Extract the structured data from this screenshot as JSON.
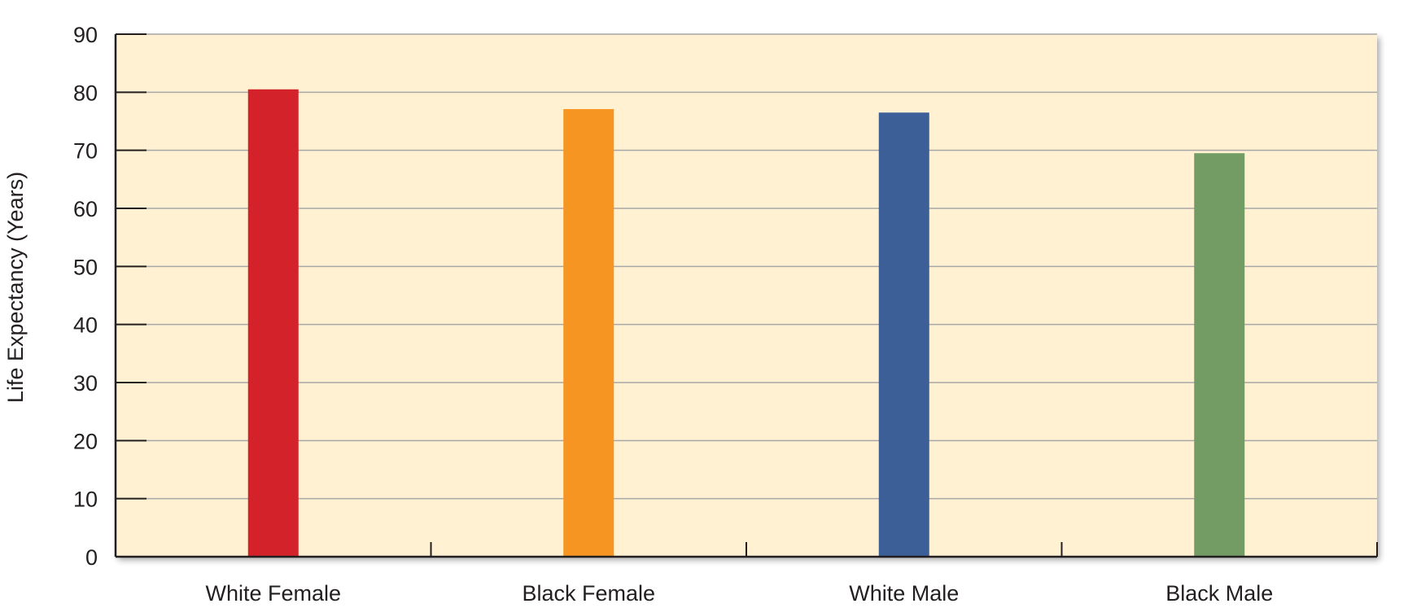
{
  "chart_data": {
    "type": "bar",
    "title": "",
    "xlabel": "",
    "ylabel": "Life Expectancy (Years)",
    "categories": [
      "White Female",
      "Black Female",
      "White Male",
      "Black Male"
    ],
    "values": [
      80.5,
      77.1,
      76.5,
      69.5
    ],
    "ylim": [
      0,
      90
    ],
    "yticks": [
      "0",
      "10",
      "20",
      "30",
      "40",
      "50",
      "60",
      "70",
      "80",
      "90"
    ],
    "grid": true,
    "colors": {
      "plot_background": "#fff1d2",
      "gridline": "#a7a7a7",
      "axis": "#231f20",
      "bars": [
        "#d3222a",
        "#f69521",
        "#3d5f98",
        "#729c64"
      ]
    }
  }
}
